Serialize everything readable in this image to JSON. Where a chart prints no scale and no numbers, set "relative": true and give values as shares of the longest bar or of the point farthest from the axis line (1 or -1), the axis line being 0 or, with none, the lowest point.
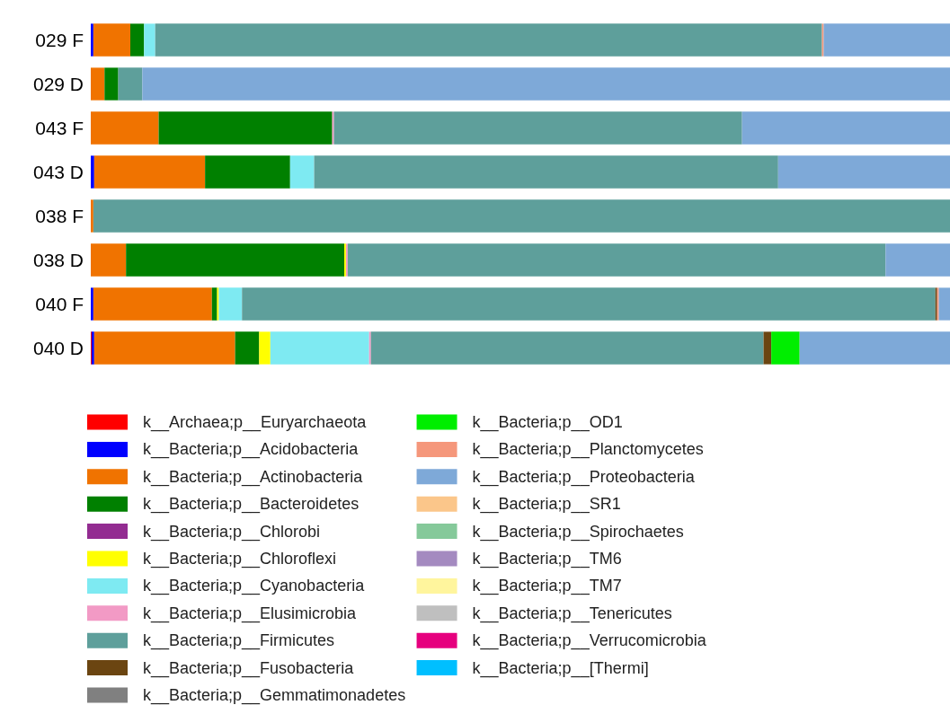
{
  "chart_data": {
    "type": "bar",
    "orientation": "horizontal",
    "stacked": true,
    "relative": true,
    "legend": "bottom",
    "categories": [
      "029 F",
      "029 D",
      "043 F",
      "043 D",
      "038 F",
      "038 D",
      "040 F",
      "040 D"
    ],
    "series": [
      {
        "name": "k__Archaea;p__Euryarchaeota",
        "color": "#ff0000",
        "values": [
          null,
          null,
          null,
          null,
          null,
          null,
          null,
          0.001
        ]
      },
      {
        "name": "k__Bacteria;p__Acidobacteria",
        "color": "#0000ff",
        "values": [
          0.003,
          null,
          null,
          0.004,
          null,
          null,
          0.003,
          0.003
        ]
      },
      {
        "name": "k__Bacteria;p__Actinobacteria",
        "color": "#f07300",
        "values": [
          0.043,
          0.016,
          0.079,
          0.129,
          0.003,
          0.041,
          0.138,
          0.164
        ]
      },
      {
        "name": "k__Bacteria;p__Bacteroidetes",
        "color": "#008000",
        "values": [
          0.016,
          0.016,
          0.202,
          0.099,
          null,
          0.254,
          0.006,
          0.028
        ]
      },
      {
        "name": "k__Bacteria;p__Chlorobi",
        "color": "#932c91",
        "values": [
          null,
          null,
          null,
          null,
          null,
          null,
          null,
          null
        ]
      },
      {
        "name": "k__Bacteria;p__Chloroflexi",
        "color": "#ffff00",
        "values": [
          null,
          null,
          null,
          null,
          null,
          0.002,
          0.002,
          0.013
        ]
      },
      {
        "name": "k__Bacteria;p__Cyanobacteria",
        "color": "#7eeaf2",
        "values": [
          0.013,
          null,
          null,
          0.028,
          null,
          null,
          0.027,
          0.115
        ]
      },
      {
        "name": "k__Bacteria;p__Elusimicrobia",
        "color": "#f29ac5",
        "values": [
          null,
          null,
          0.002,
          null,
          null,
          0.002,
          null,
          0.002
        ]
      },
      {
        "name": "k__Bacteria;p__Firmicutes",
        "color": "#5e9f9b",
        "values": [
          0.776,
          0.028,
          0.475,
          0.54,
          0.997,
          0.626,
          0.807,
          0.457
        ]
      },
      {
        "name": "k__Bacteria;p__Fusobacteria",
        "color": "#6b4511",
        "values": [
          null,
          null,
          null,
          null,
          null,
          null,
          0.002,
          0.009
        ]
      },
      {
        "name": "k__Bacteria;p__Gemmatimonadetes",
        "color": "#808080",
        "values": [
          null,
          null,
          null,
          null,
          null,
          null,
          null,
          null
        ]
      },
      {
        "name": "k__Bacteria;p__OD1",
        "color": "#00ee00",
        "values": [
          null,
          null,
          null,
          null,
          null,
          null,
          null,
          0.033
        ]
      },
      {
        "name": "k__Bacteria;p__Planctomycetes",
        "color": "#f5977b",
        "values": [
          0.002,
          null,
          null,
          null,
          null,
          null,
          0.002,
          null
        ]
      },
      {
        "name": "k__Bacteria;p__Proteobacteria",
        "color": "#7ea9d8",
        "values": [
          0.147,
          0.94,
          0.242,
          0.2,
          null,
          0.075,
          0.013,
          0.175
        ]
      },
      {
        "name": "k__Bacteria;p__SR1",
        "color": "#fbc68a",
        "values": [
          null,
          null,
          null,
          null,
          null,
          null,
          null,
          null
        ]
      },
      {
        "name": "k__Bacteria;p__Spirochaetes",
        "color": "#85c99a",
        "values": [
          null,
          null,
          null,
          null,
          null,
          null,
          null,
          null
        ]
      },
      {
        "name": "k__Bacteria;p__TM6",
        "color": "#a48ac0",
        "values": [
          null,
          null,
          null,
          null,
          null,
          null,
          null,
          null
        ]
      },
      {
        "name": "k__Bacteria;p__TM7",
        "color": "#fff59d",
        "values": [
          null,
          null,
          null,
          null,
          null,
          null,
          null,
          null
        ]
      },
      {
        "name": "k__Bacteria;p__Tenericutes",
        "color": "#bfbfbf",
        "values": [
          null,
          null,
          null,
          null,
          null,
          null,
          null,
          null
        ]
      },
      {
        "name": "k__Bacteria;p__Verrucomicrobia",
        "color": "#e6007e",
        "values": [
          null,
          null,
          null,
          null,
          null,
          null,
          null,
          null
        ]
      },
      {
        "name": "k__Bacteria;p__[Thermi]",
        "color": "#00bfff",
        "values": [
          null,
          null,
          null,
          null,
          null,
          null,
          null,
          null
        ]
      }
    ]
  }
}
